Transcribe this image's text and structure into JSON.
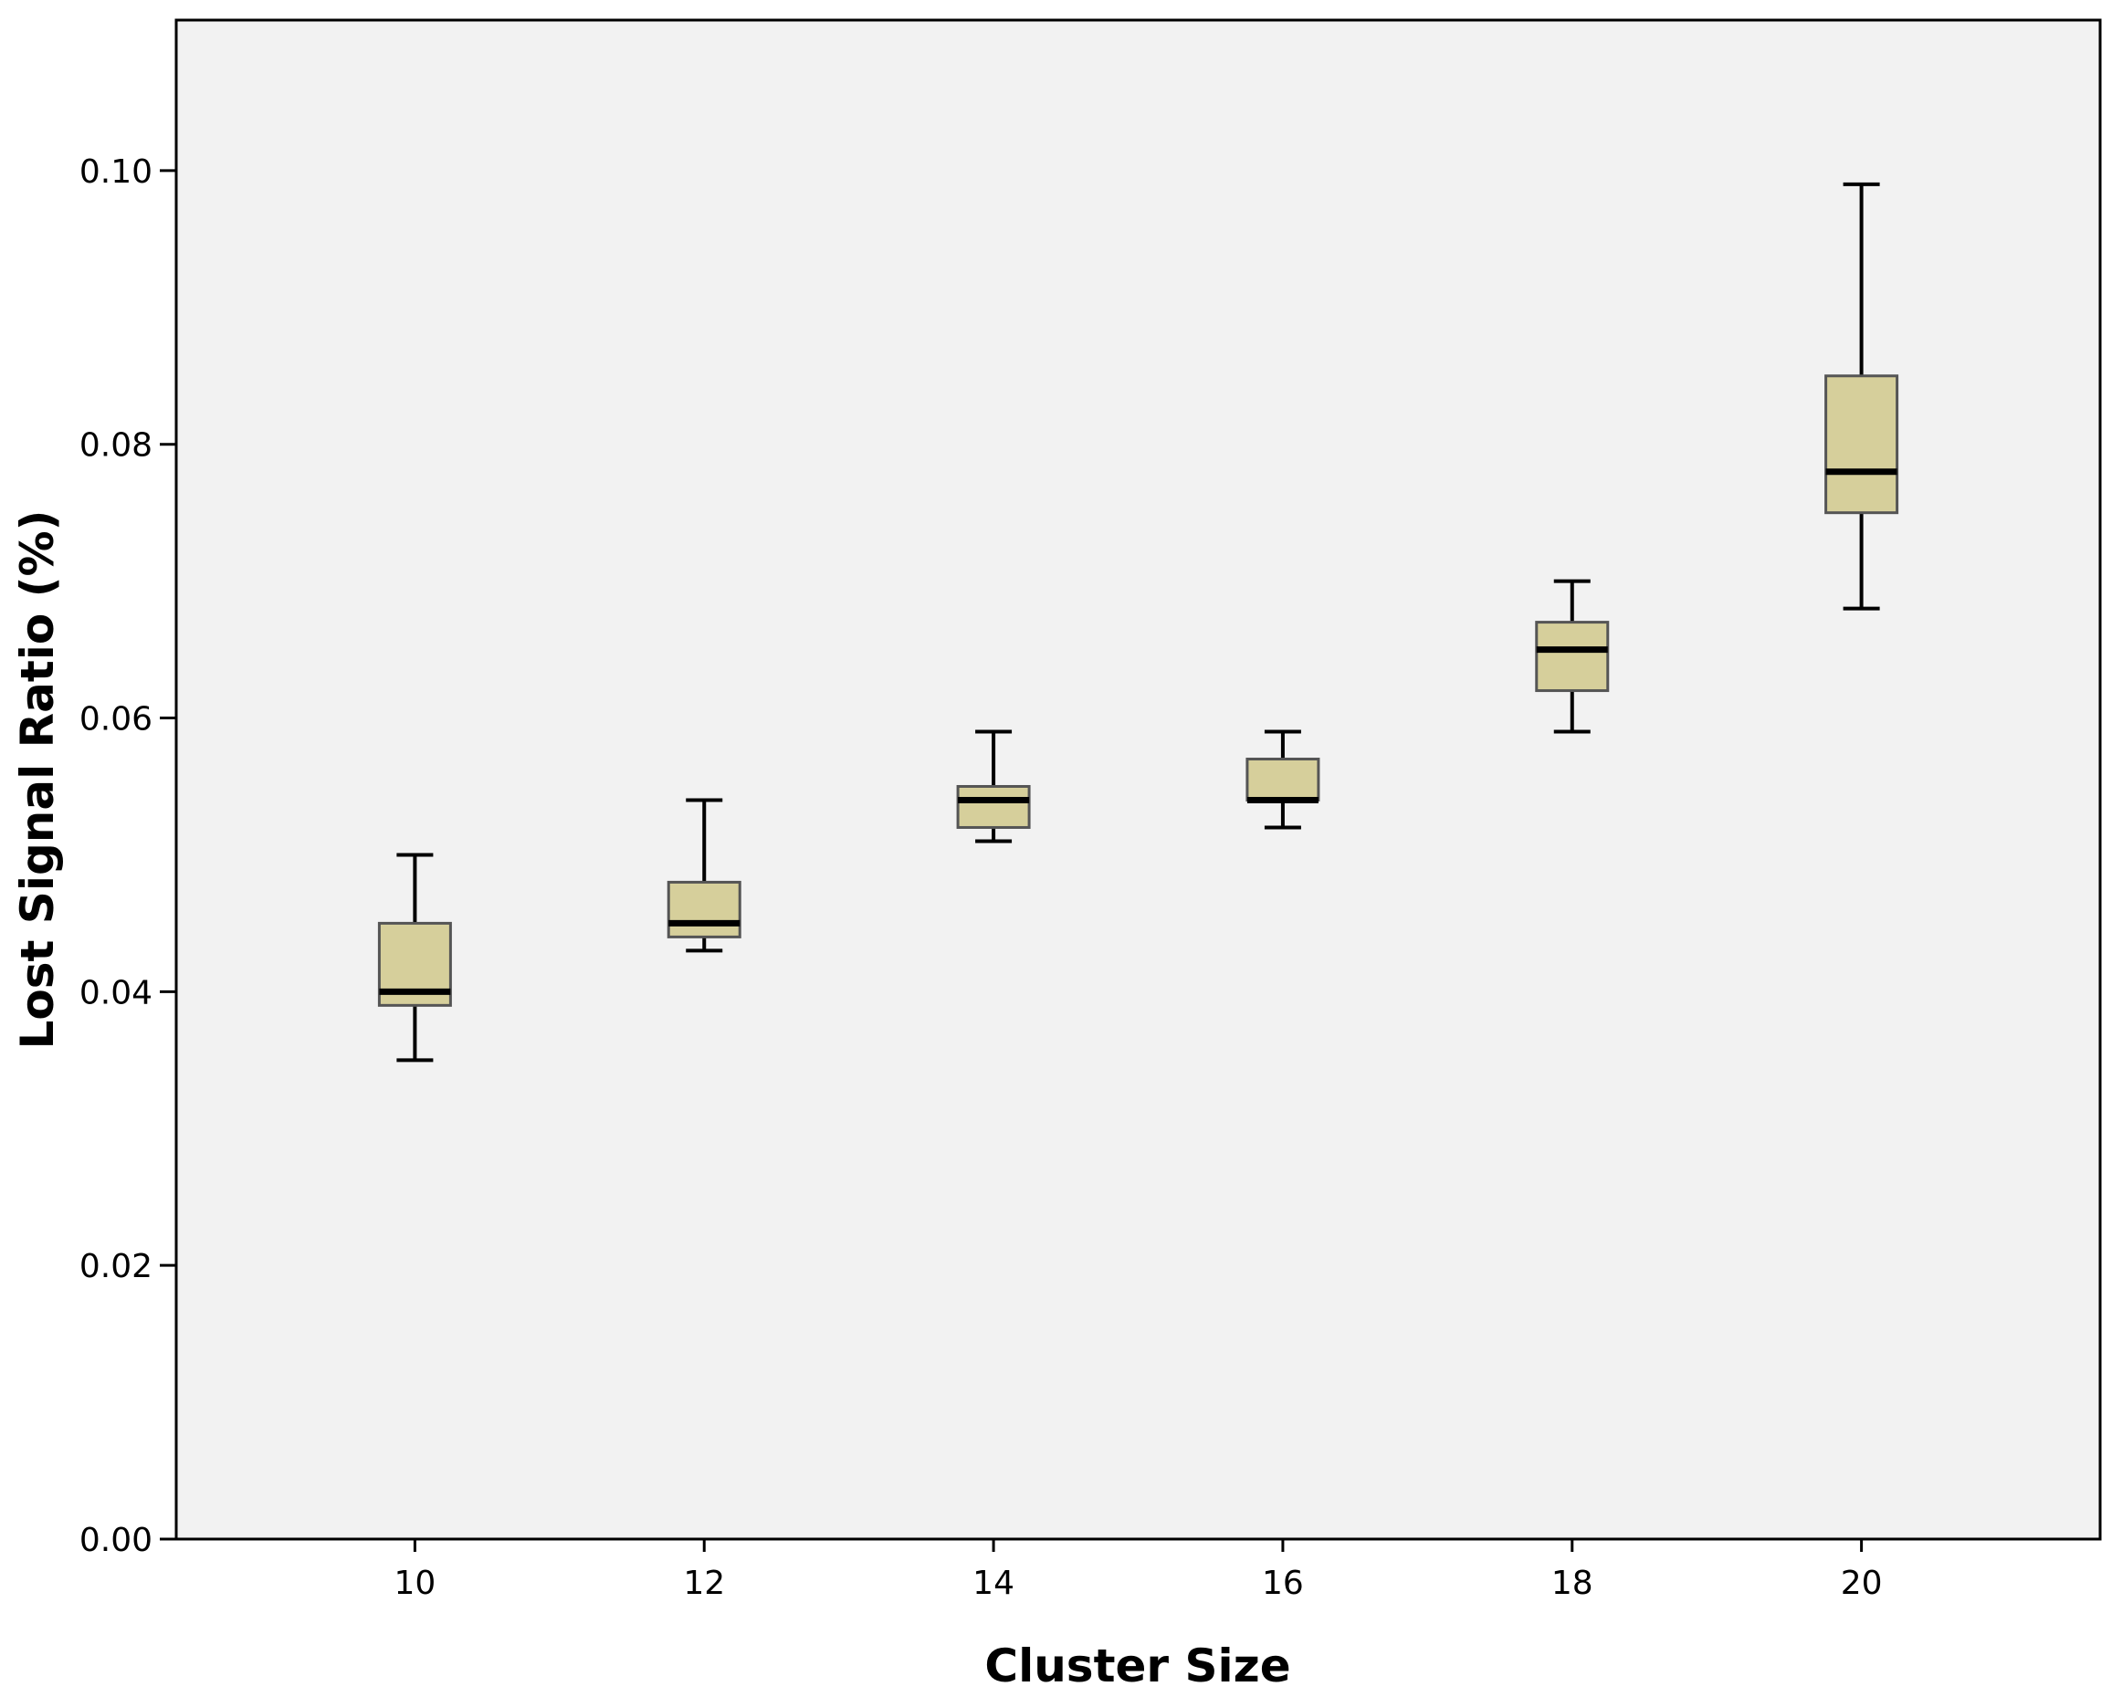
{
  "chart_data": {
    "type": "boxplot",
    "title": "",
    "xlabel": "Cluster Size",
    "ylabel": "Lost Signal Ratio (%)",
    "categories": [
      "10",
      "12",
      "14",
      "16",
      "18",
      "20"
    ],
    "x_values": [
      10,
      12,
      14,
      16,
      18,
      20
    ],
    "xlim": [
      8.35,
      21.65
    ],
    "ylim": [
      0,
      0.111
    ],
    "y_ticks": [
      "0.00",
      "0.02",
      "0.04",
      "0.06",
      "0.08",
      "0.10"
    ],
    "y_tick_values": [
      0,
      0.02,
      0.04,
      0.06,
      0.08,
      0.1
    ],
    "grid": false,
    "legend": "none",
    "boxes": [
      {
        "category": "10",
        "min": 0.035,
        "q1": 0.039,
        "median": 0.04,
        "q3": 0.045,
        "max": 0.05
      },
      {
        "category": "12",
        "min": 0.043,
        "q1": 0.044,
        "median": 0.045,
        "q3": 0.048,
        "max": 0.054
      },
      {
        "category": "14",
        "min": 0.051,
        "q1": 0.052,
        "median": 0.054,
        "q3": 0.055,
        "max": 0.059
      },
      {
        "category": "16",
        "min": 0.052,
        "q1": 0.054,
        "median": 0.054,
        "q3": 0.057,
        "max": 0.059
      },
      {
        "category": "18",
        "min": 0.059,
        "q1": 0.062,
        "median": 0.065,
        "q3": 0.067,
        "max": 0.07
      },
      {
        "category": "20",
        "min": 0.068,
        "q1": 0.075,
        "median": 0.078,
        "q3": 0.085,
        "max": 0.099
      }
    ],
    "colors": {
      "plot_background": "#f2f2f2",
      "box_fill": "#d6cf9b",
      "box_stroke": "#555555",
      "whisker": "#000000",
      "median": "#000000",
      "axis": "#000000"
    }
  }
}
